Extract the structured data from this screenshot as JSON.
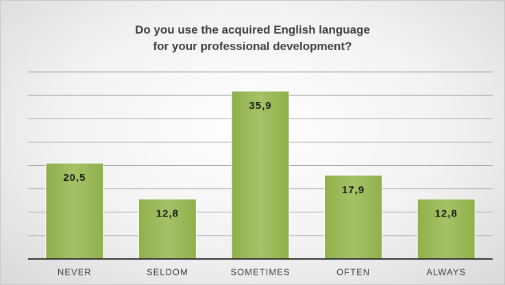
{
  "chart_data": {
    "type": "bar",
    "title": "Do you use the acquired English language\nfor your professional development?",
    "categories": [
      "NEVER",
      "SELDOM",
      "SOMETIMES",
      "OFTEN",
      "ALWAYS"
    ],
    "values": [
      20.5,
      12.8,
      35.9,
      17.9,
      12.8
    ],
    "value_labels": [
      "20,5",
      "12,8",
      "35,9",
      "17,9",
      "12,8"
    ],
    "color": "#9bbb59",
    "ylim": [
      0,
      40
    ],
    "yticks": [
      0,
      5,
      10,
      15,
      20,
      25,
      30,
      35,
      40
    ],
    "grid": true
  }
}
